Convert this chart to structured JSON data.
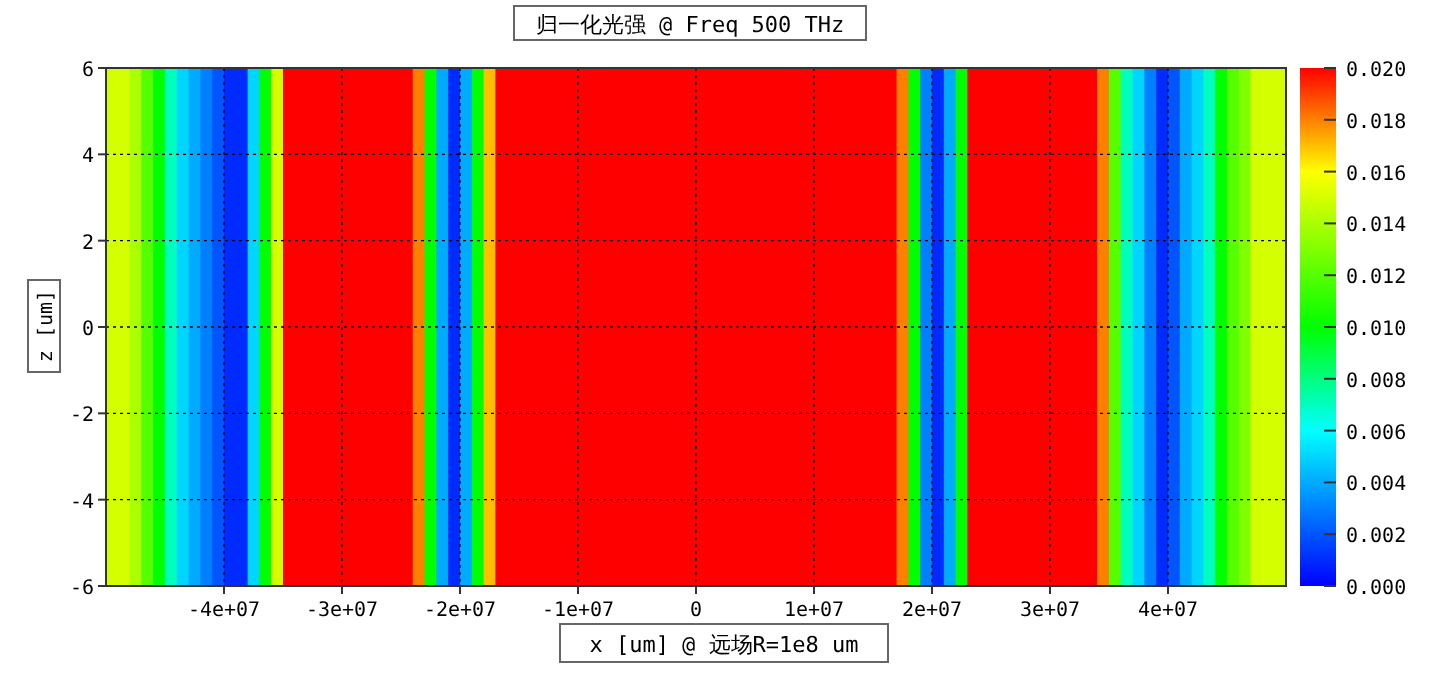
{
  "chart_data": {
    "type": "heatmap",
    "title": "归一化光强 @ Freq 500 THz",
    "xlabel": "x [um] @ 远场R=1e8 um",
    "ylabel": "z [um]",
    "x": [
      -49500000.0,
      -48500000.0,
      -47500000.0,
      -46500000.0,
      -45500000.0,
      -44500000.0,
      -43500000.0,
      -42500000.0,
      -41500000.0,
      -40500000.0,
      -39500000.0,
      -38500000.0,
      -37500000.0,
      -36500000.0,
      -35500000.0,
      -34500000.0,
      -33500000.0,
      -32500000.0,
      -31500000.0,
      -30500000.0,
      -29500000.0,
      -28500000.0,
      -27500000.0,
      -26500000.0,
      -25500000.0,
      -24500000.0,
      -23500000.0,
      -22500000.0,
      -21500000.0,
      -20500000.0,
      -19500000.0,
      -18500000.0,
      -17500000.0,
      -16500000.0,
      -15500000.0,
      -14500000.0,
      -13500000.0,
      -12500000.0,
      -11500000.0,
      -10500000.0,
      -9500000.0,
      -8500000.0,
      -7500000.0,
      -6500000.0,
      -5500000.0,
      -4500000.0,
      -3500000.0,
      -2500000.0,
      -1500000.0,
      -500000.0,
      500000.0,
      1500000.0,
      2500000.0,
      3500000.0,
      4500000.0,
      5500000.0,
      6500000.0,
      7500000.0,
      8500000.0,
      9500000.0,
      10500000.0,
      11500000.0,
      12500000.0,
      13500000.0,
      14500000.0,
      15500000.0,
      16500000.0,
      17500000.0,
      18500000.0,
      19500000.0,
      20500000.0,
      21500000.0,
      22500000.0,
      23500000.0,
      24500000.0,
      25500000.0,
      26500000.0,
      27500000.0,
      28500000.0,
      29500000.0,
      30500000.0,
      31500000.0,
      32500000.0,
      33500000.0,
      34500000.0,
      35500000.0,
      36500000.0,
      37500000.0,
      38500000.0,
      39500000.0,
      40500000.0,
      41500000.0,
      42500000.0,
      43500000.0,
      44500000.0,
      45500000.0,
      46500000.0,
      47500000.0,
      48500000.0,
      49500000.0
    ],
    "y": [
      5,
      3,
      1,
      -1,
      -3,
      -5
    ],
    "cells": [
      [
        0.015,
        0.015,
        0.014,
        0.012,
        0.01,
        0.007,
        0.005,
        0.004,
        0.003,
        0.002,
        0.001,
        0.001,
        0.005,
        0.01,
        0.015,
        0.02,
        0.02,
        0.02,
        0.02,
        0.02,
        0.02,
        0.02,
        0.02,
        0.02,
        0.02,
        0.02,
        0.018,
        0.01,
        0.004,
        0.001,
        0.004,
        0.01,
        0.017,
        0.02,
        0.02,
        0.02,
        0.02,
        0.02,
        0.02,
        0.02,
        0.02,
        0.02,
        0.02,
        0.02,
        0.02,
        0.02,
        0.02,
        0.02,
        0.02,
        0.02,
        0.02,
        0.02,
        0.02,
        0.02,
        0.02,
        0.02,
        0.02,
        0.02,
        0.02,
        0.02,
        0.02,
        0.02,
        0.02,
        0.02,
        0.02,
        0.02,
        0.02,
        0.018,
        0.01,
        0.003,
        0.001,
        0.004,
        0.01,
        0.02,
        0.02,
        0.02,
        0.02,
        0.02,
        0.02,
        0.02,
        0.02,
        0.02,
        0.02,
        0.02,
        0.018,
        0.012,
        0.007,
        0.005,
        0.003,
        0.001,
        0.002,
        0.004,
        0.005,
        0.007,
        0.01,
        0.012,
        0.013,
        0.015,
        0.015,
        0.015
      ],
      [
        0.015,
        0.015,
        0.014,
        0.012,
        0.01,
        0.007,
        0.005,
        0.004,
        0.003,
        0.002,
        0.001,
        0.001,
        0.005,
        0.01,
        0.015,
        0.02,
        0.02,
        0.02,
        0.02,
        0.02,
        0.02,
        0.02,
        0.02,
        0.02,
        0.02,
        0.02,
        0.018,
        0.01,
        0.004,
        0.001,
        0.004,
        0.01,
        0.017,
        0.02,
        0.02,
        0.02,
        0.02,
        0.02,
        0.02,
        0.02,
        0.02,
        0.02,
        0.02,
        0.02,
        0.02,
        0.02,
        0.02,
        0.02,
        0.02,
        0.02,
        0.02,
        0.02,
        0.02,
        0.02,
        0.02,
        0.02,
        0.02,
        0.02,
        0.02,
        0.02,
        0.02,
        0.02,
        0.02,
        0.02,
        0.02,
        0.02,
        0.02,
        0.018,
        0.01,
        0.003,
        0.001,
        0.004,
        0.01,
        0.02,
        0.02,
        0.02,
        0.02,
        0.02,
        0.02,
        0.02,
        0.02,
        0.02,
        0.02,
        0.02,
        0.018,
        0.012,
        0.007,
        0.005,
        0.003,
        0.001,
        0.002,
        0.004,
        0.005,
        0.007,
        0.01,
        0.012,
        0.013,
        0.015,
        0.015,
        0.015
      ],
      [
        0.015,
        0.015,
        0.014,
        0.012,
        0.01,
        0.007,
        0.005,
        0.004,
        0.003,
        0.002,
        0.001,
        0.001,
        0.005,
        0.01,
        0.015,
        0.02,
        0.02,
        0.02,
        0.02,
        0.02,
        0.02,
        0.02,
        0.02,
        0.02,
        0.02,
        0.02,
        0.018,
        0.01,
        0.004,
        0.001,
        0.004,
        0.01,
        0.017,
        0.02,
        0.02,
        0.02,
        0.02,
        0.02,
        0.02,
        0.02,
        0.02,
        0.02,
        0.02,
        0.02,
        0.02,
        0.02,
        0.02,
        0.02,
        0.02,
        0.02,
        0.02,
        0.02,
        0.02,
        0.02,
        0.02,
        0.02,
        0.02,
        0.02,
        0.02,
        0.02,
        0.02,
        0.02,
        0.02,
        0.02,
        0.02,
        0.02,
        0.02,
        0.018,
        0.01,
        0.003,
        0.001,
        0.004,
        0.01,
        0.02,
        0.02,
        0.02,
        0.02,
        0.02,
        0.02,
        0.02,
        0.02,
        0.02,
        0.02,
        0.02,
        0.018,
        0.012,
        0.007,
        0.005,
        0.003,
        0.001,
        0.002,
        0.004,
        0.005,
        0.007,
        0.01,
        0.012,
        0.013,
        0.015,
        0.015,
        0.015
      ],
      [
        0.015,
        0.015,
        0.014,
        0.012,
        0.01,
        0.007,
        0.005,
        0.004,
        0.003,
        0.002,
        0.001,
        0.001,
        0.005,
        0.01,
        0.015,
        0.02,
        0.02,
        0.02,
        0.02,
        0.02,
        0.02,
        0.02,
        0.02,
        0.02,
        0.02,
        0.02,
        0.018,
        0.01,
        0.004,
        0.001,
        0.004,
        0.01,
        0.017,
        0.02,
        0.02,
        0.02,
        0.02,
        0.02,
        0.02,
        0.02,
        0.02,
        0.02,
        0.02,
        0.02,
        0.02,
        0.02,
        0.02,
        0.02,
        0.02,
        0.02,
        0.02,
        0.02,
        0.02,
        0.02,
        0.02,
        0.02,
        0.02,
        0.02,
        0.02,
        0.02,
        0.02,
        0.02,
        0.02,
        0.02,
        0.02,
        0.02,
        0.02,
        0.018,
        0.01,
        0.003,
        0.001,
        0.004,
        0.01,
        0.02,
        0.02,
        0.02,
        0.02,
        0.02,
        0.02,
        0.02,
        0.02,
        0.02,
        0.02,
        0.02,
        0.018,
        0.012,
        0.007,
        0.005,
        0.003,
        0.001,
        0.002,
        0.004,
        0.005,
        0.007,
        0.01,
        0.012,
        0.013,
        0.015,
        0.015,
        0.015
      ],
      [
        0.015,
        0.015,
        0.014,
        0.012,
        0.01,
        0.007,
        0.005,
        0.004,
        0.003,
        0.002,
        0.001,
        0.001,
        0.005,
        0.01,
        0.015,
        0.02,
        0.02,
        0.02,
        0.02,
        0.02,
        0.02,
        0.02,
        0.02,
        0.02,
        0.02,
        0.02,
        0.018,
        0.01,
        0.004,
        0.001,
        0.004,
        0.01,
        0.017,
        0.02,
        0.02,
        0.02,
        0.02,
        0.02,
        0.02,
        0.02,
        0.02,
        0.02,
        0.02,
        0.02,
        0.02,
        0.02,
        0.02,
        0.02,
        0.02,
        0.02,
        0.02,
        0.02,
        0.02,
        0.02,
        0.02,
        0.02,
        0.02,
        0.02,
        0.02,
        0.02,
        0.02,
        0.02,
        0.02,
        0.02,
        0.02,
        0.02,
        0.02,
        0.018,
        0.01,
        0.003,
        0.001,
        0.004,
        0.01,
        0.02,
        0.02,
        0.02,
        0.02,
        0.02,
        0.02,
        0.02,
        0.02,
        0.02,
        0.02,
        0.02,
        0.018,
        0.012,
        0.007,
        0.005,
        0.003,
        0.001,
        0.002,
        0.004,
        0.005,
        0.007,
        0.01,
        0.012,
        0.013,
        0.015,
        0.015,
        0.015
      ],
      [
        0.015,
        0.015,
        0.014,
        0.012,
        0.01,
        0.007,
        0.005,
        0.004,
        0.003,
        0.002,
        0.001,
        0.001,
        0.005,
        0.01,
        0.015,
        0.02,
        0.02,
        0.02,
        0.02,
        0.02,
        0.02,
        0.02,
        0.02,
        0.02,
        0.02,
        0.02,
        0.018,
        0.01,
        0.004,
        0.001,
        0.004,
        0.01,
        0.017,
        0.02,
        0.02,
        0.02,
        0.02,
        0.02,
        0.02,
        0.02,
        0.02,
        0.02,
        0.02,
        0.02,
        0.02,
        0.02,
        0.02,
        0.02,
        0.02,
        0.02,
        0.02,
        0.02,
        0.02,
        0.02,
        0.02,
        0.02,
        0.02,
        0.02,
        0.02,
        0.02,
        0.02,
        0.02,
        0.02,
        0.02,
        0.02,
        0.02,
        0.02,
        0.018,
        0.01,
        0.003,
        0.001,
        0.004,
        0.01,
        0.02,
        0.02,
        0.02,
        0.02,
        0.02,
        0.02,
        0.02,
        0.02,
        0.02,
        0.02,
        0.02,
        0.018,
        0.012,
        0.007,
        0.005,
        0.003,
        0.001,
        0.002,
        0.004,
        0.005,
        0.007,
        0.01,
        0.012,
        0.013,
        0.015,
        0.015,
        0.015
      ]
    ],
    "xlim": [
      -50000000.0,
      50000000.0
    ],
    "xticks": [
      {
        "value": -40000000.0,
        "label": "-4e+07"
      },
      {
        "value": -30000000.0,
        "label": "-3e+07"
      },
      {
        "value": -20000000.0,
        "label": "-2e+07"
      },
      {
        "value": -10000000.0,
        "label": "-1e+07"
      },
      0,
      {
        "value": 10000000.0,
        "label": "1e+07"
      },
      {
        "value": 20000000.0,
        "label": "2e+07"
      },
      {
        "value": 30000000.0,
        "label": "3e+07"
      },
      {
        "value": 40000000.0,
        "label": "4e+07"
      }
    ],
    "ylim": [
      -6,
      6
    ],
    "yticks": [
      -6,
      -4,
      -2,
      0,
      2,
      4,
      6
    ],
    "clim": [
      0,
      0.02
    ],
    "cticks": [
      {
        "value": 0,
        "label": "0.000"
      },
      {
        "value": 0.002,
        "label": "0.002"
      },
      {
        "value": 0.004,
        "label": "0.004"
      },
      {
        "value": 0.006,
        "label": "0.006"
      },
      {
        "value": 0.008,
        "label": "0.008"
      },
      {
        "value": 0.01,
        "label": "0.010"
      },
      {
        "value": 0.012,
        "label": "0.012"
      },
      {
        "value": 0.014,
        "label": "0.014"
      },
      {
        "value": 0.016,
        "label": "0.016"
      },
      {
        "value": 0.018,
        "label": "0.018"
      },
      {
        "value": 0.02,
        "label": "0.020"
      }
    ],
    "grid": true
  }
}
